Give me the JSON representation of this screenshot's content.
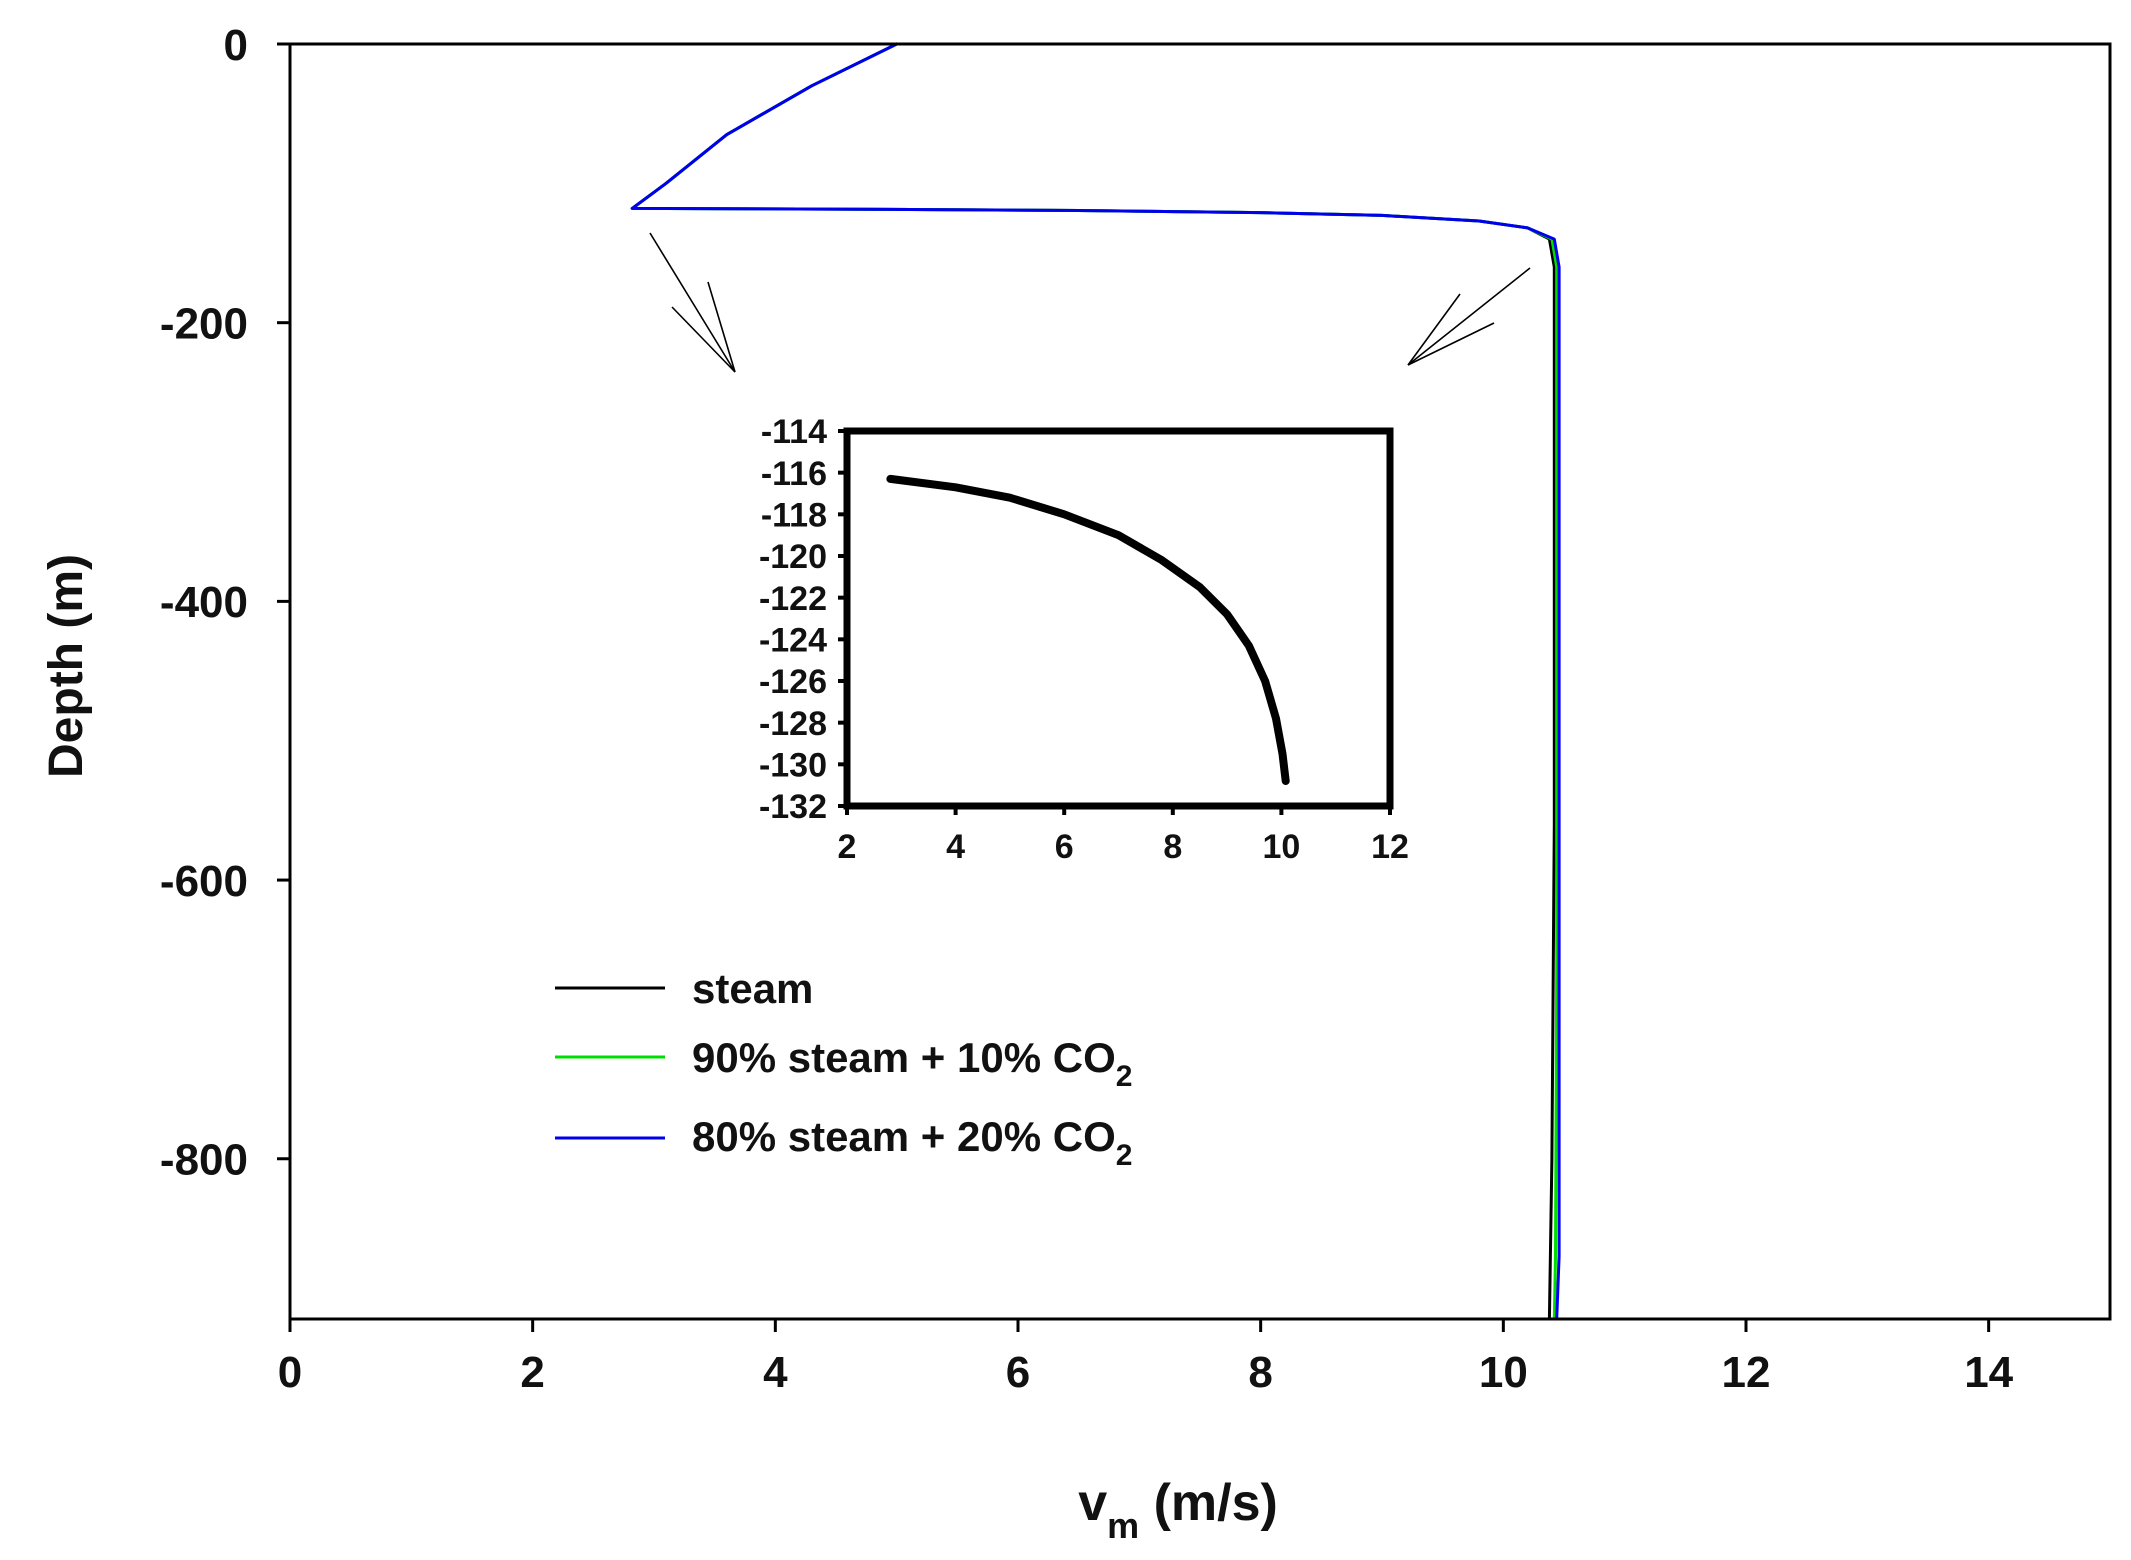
{
  "chart_data": [
    {
      "type": "line",
      "xlabel": "v",
      "xlabel_sub": "m",
      "xlabel_unit": " (m/s)",
      "ylabel": "Depth (m)",
      "xlim": [
        0,
        15
      ],
      "ylim": [
        -915,
        0
      ],
      "x_ticks": [
        0,
        2,
        4,
        6,
        8,
        10,
        12,
        14
      ],
      "y_ticks": [
        0,
        -200,
        -400,
        -600,
        -800
      ],
      "legend_position": "lower-left",
      "series": [
        {
          "name": "steam",
          "legend_text": "steam",
          "legend_sub": "",
          "color": "#000000",
          "points": [
            [
              5.0,
              0
            ],
            [
              4.3,
              -30
            ],
            [
              3.6,
              -65
            ],
            [
              3.1,
              -100
            ],
            [
              2.82,
              -118
            ],
            [
              4.5,
              -118.5
            ],
            [
              6.5,
              -119.5
            ],
            [
              8.0,
              -121
            ],
            [
              9.0,
              -123
            ],
            [
              9.8,
              -127
            ],
            [
              10.2,
              -132
            ],
            [
              10.38,
              -140
            ],
            [
              10.42,
              -160
            ],
            [
              10.42,
              -560
            ],
            [
              10.4,
              -800
            ],
            [
              10.38,
              -915
            ]
          ]
        },
        {
          "name": "90% steam + 10% CO2",
          "legend_text": "90% steam + 10% CO",
          "legend_sub": "2",
          "color": "#00dd00",
          "points": [
            [
              5.0,
              0
            ],
            [
              4.3,
              -30
            ],
            [
              3.6,
              -65
            ],
            [
              3.1,
              -100
            ],
            [
              2.82,
              -118
            ],
            [
              4.5,
              -118.5
            ],
            [
              6.5,
              -119.5
            ],
            [
              8.0,
              -121
            ],
            [
              9.0,
              -123
            ],
            [
              9.8,
              -127
            ],
            [
              10.2,
              -132
            ],
            [
              10.4,
              -140
            ],
            [
              10.44,
              -160
            ],
            [
              10.44,
              -660
            ],
            [
              10.43,
              -870
            ],
            [
              10.42,
              -915
            ]
          ]
        },
        {
          "name": "80% steam + 20% CO2",
          "legend_text": "80% steam + 20% CO",
          "legend_sub": "2",
          "color": "#0000ee",
          "points": [
            [
              5.0,
              0
            ],
            [
              4.3,
              -30
            ],
            [
              3.6,
              -65
            ],
            [
              3.1,
              -100
            ],
            [
              2.82,
              -118
            ],
            [
              4.5,
              -118.5
            ],
            [
              6.5,
              -119.5
            ],
            [
              8.0,
              -121
            ],
            [
              9.0,
              -123
            ],
            [
              9.8,
              -127
            ],
            [
              10.2,
              -132
            ],
            [
              10.42,
              -140
            ],
            [
              10.46,
              -160
            ],
            [
              10.46,
              -870
            ],
            [
              10.44,
              -915
            ]
          ]
        }
      ]
    },
    {
      "type": "line",
      "xlim": [
        2,
        12
      ],
      "ylim": [
        -132,
        -114
      ],
      "x_ticks": [
        2,
        4,
        6,
        8,
        10,
        12
      ],
      "y_ticks": [
        -114,
        -116,
        -118,
        -120,
        -122,
        -124,
        -126,
        -128,
        -130,
        -132
      ],
      "series": [
        {
          "color": "#000000",
          "points": [
            [
              2.8,
              -116.3
            ],
            [
              4.0,
              -116.7
            ],
            [
              5.0,
              -117.2
            ],
            [
              6.0,
              -118.0
            ],
            [
              7.0,
              -119.0
            ],
            [
              7.8,
              -120.2
            ],
            [
              8.5,
              -121.5
            ],
            [
              9.0,
              -122.8
            ],
            [
              9.4,
              -124.3
            ],
            [
              9.7,
              -126.0
            ],
            [
              9.9,
              -127.8
            ],
            [
              10.02,
              -129.5
            ],
            [
              10.08,
              -130.8
            ]
          ]
        }
      ]
    }
  ]
}
